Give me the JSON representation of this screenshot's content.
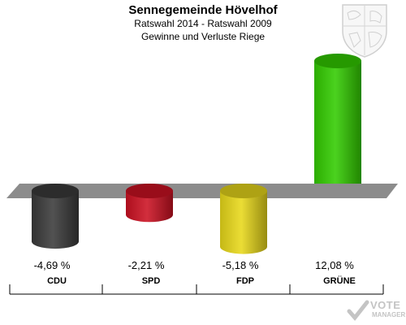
{
  "header": {
    "title": "Sennegemeinde Hövelhof",
    "subtitle": "Ratswahl 2014 - Ratswahl 2009",
    "caption": "Gewinne und Verluste Riege"
  },
  "watermark": {
    "brand": "VOTE",
    "sub": "MANAGER"
  },
  "chart_data": {
    "type": "bar",
    "categories": [
      "CDU",
      "SPD",
      "FDP",
      "GRÜNE"
    ],
    "values": [
      -4.69,
      -2.21,
      -5.18,
      12.08
    ],
    "value_labels": [
      "-4,69 %",
      "-2,21 %",
      "-5,18 %",
      "12,08 %"
    ],
    "colors": [
      "#3a3a3a",
      "#cc1122",
      "#e8d81a",
      "#33cc00"
    ],
    "baseline_color": "#8c8c8c",
    "title": "Sennegemeinde Hövelhof",
    "ylim": [
      -5.18,
      12.08
    ]
  }
}
